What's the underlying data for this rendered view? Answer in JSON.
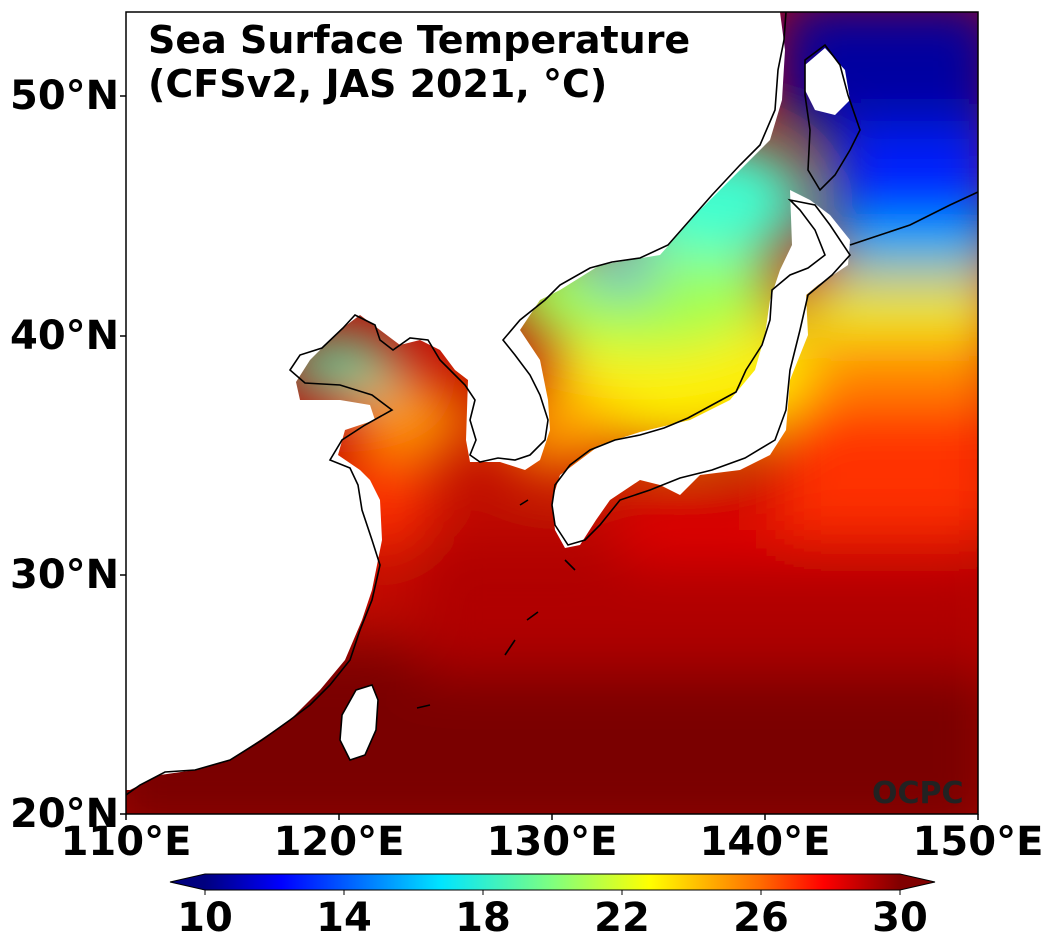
{
  "map": {
    "title_line1": "Sea Surface Temperature",
    "title_line2": "(CFSv2, JAS 2021, °C)",
    "credit": "OCPC",
    "lat_labels": [
      "50°N",
      "40°N",
      "30°N",
      "20°N"
    ],
    "lon_labels": [
      "110°E",
      "120°E",
      "130°E",
      "140°E",
      "150°E"
    ],
    "extent": {
      "lon_min": 110,
      "lon_max": 150,
      "lat_min": 20,
      "lat_max": 53.5
    },
    "land_color": "#ffffff",
    "coastline_color": "#000000"
  },
  "colorbar": {
    "ticks": [
      "10",
      "14",
      "18",
      "22",
      "26",
      "30"
    ],
    "min": 10,
    "max": 30,
    "extend": "both",
    "colormap": "jet",
    "colors": [
      "#00007f",
      "#0000ff",
      "#007fff",
      "#00ffff",
      "#7fff7f",
      "#ffff00",
      "#ff7f00",
      "#ff0000",
      "#7f0000"
    ]
  }
}
